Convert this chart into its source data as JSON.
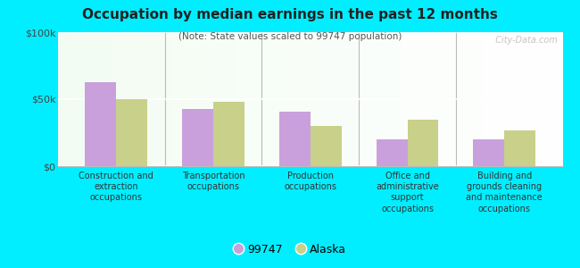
{
  "title": "Occupation by median earnings in the past 12 months",
  "subtitle": "(Note: State values scaled to 99747 population)",
  "categories": [
    "Construction and\nextraction\noccupations",
    "Transportation\noccupations",
    "Production\noccupations",
    "Office and\nadministrative\nsupport\noccupations",
    "Building and\ngrounds cleaning\nand maintenance\noccupations"
  ],
  "values_99747": [
    63000,
    43000,
    41000,
    20000,
    20000
  ],
  "values_alaska": [
    50000,
    48000,
    30000,
    35000,
    27000
  ],
  "color_99747": "#c9a0dc",
  "color_alaska": "#c8d08a",
  "background_color": "#00eeff",
  "yticks": [
    0,
    50000,
    100000
  ],
  "ytick_labels": [
    "$0",
    "$50k",
    "$100k"
  ],
  "ylim": [
    0,
    100000
  ],
  "bar_width": 0.32,
  "legend_label_99747": "99747",
  "legend_label_alaska": "Alaska",
  "watermark": "  City-Data.com"
}
